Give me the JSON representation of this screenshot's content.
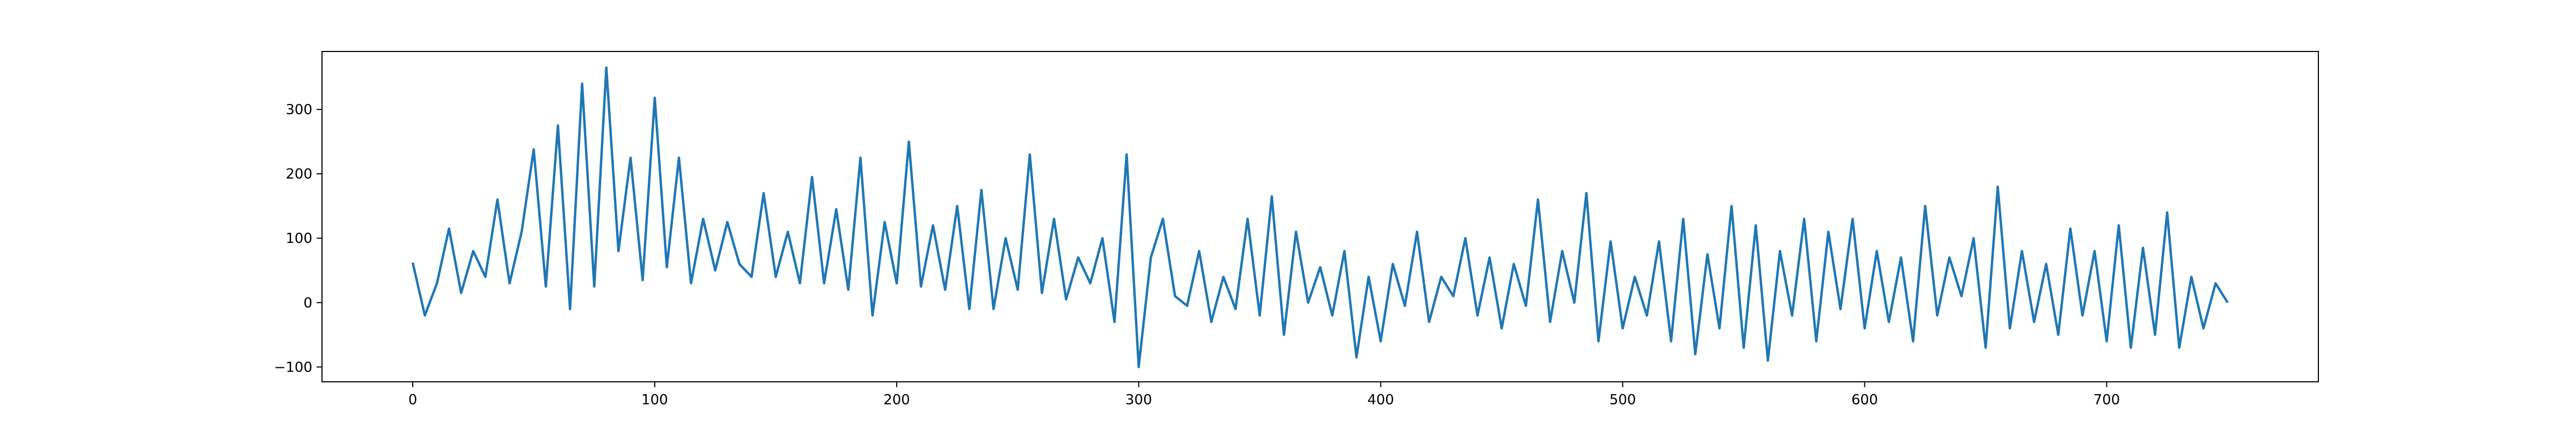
{
  "chart_data": {
    "type": "line",
    "title": "",
    "xlabel": "",
    "ylabel": "",
    "xlim": [
      -37.5,
      787.5
    ],
    "ylim": [
      -123,
      390
    ],
    "xticks": [
      0,
      100,
      200,
      300,
      400,
      500,
      600,
      700
    ],
    "yticks": [
      -100,
      0,
      100,
      200,
      300
    ],
    "grid": false,
    "legend": "none",
    "colors": {
      "line": "#1f77b4",
      "axes": "#000000",
      "background": "#ffffff"
    },
    "series": [
      {
        "x": [
          0,
          5,
          10,
          15,
          20,
          25,
          30,
          35,
          40,
          45,
          50,
          55,
          60,
          65,
          70,
          75,
          80,
          85,
          90,
          95,
          100,
          105,
          110,
          115,
          120,
          125,
          130,
          135,
          140,
          145,
          150,
          155,
          160,
          165,
          170,
          175,
          180,
          185,
          190,
          195,
          200,
          205,
          210,
          215,
          220,
          225,
          230,
          235,
          240,
          245,
          250,
          255,
          260,
          265,
          270,
          275,
          280,
          285,
          290,
          295,
          300,
          305,
          310,
          315,
          320,
          325,
          330,
          335,
          340,
          345,
          350,
          355,
          360,
          365,
          370,
          375,
          380,
          385,
          390,
          395,
          400,
          405,
          410,
          415,
          420,
          425,
          430,
          435,
          440,
          445,
          450,
          455,
          460,
          465,
          470,
          475,
          480,
          485,
          490,
          495,
          500,
          505,
          510,
          515,
          520,
          525,
          530,
          535,
          540,
          545,
          550,
          555,
          560,
          565,
          570,
          575,
          580,
          585,
          590,
          595,
          600,
          605,
          610,
          615,
          620,
          625,
          630,
          635,
          640,
          645,
          650,
          655,
          660,
          665,
          670,
          675,
          680,
          685,
          690,
          695,
          700,
          705,
          710,
          715,
          720,
          725,
          730,
          735,
          740,
          745,
          750
        ],
        "y": [
          62,
          -20,
          30,
          115,
          15,
          80,
          40,
          160,
          30,
          110,
          238,
          25,
          275,
          -10,
          340,
          25,
          365,
          80,
          225,
          35,
          318,
          55,
          225,
          30,
          130,
          50,
          125,
          60,
          40,
          170,
          40,
          110,
          30,
          195,
          30,
          145,
          20,
          225,
          -20,
          125,
          30,
          250,
          25,
          120,
          20,
          150,
          -10,
          175,
          -10,
          100,
          20,
          230,
          15,
          130,
          5,
          70,
          30,
          100,
          -30,
          230,
          -100,
          70,
          130,
          10,
          -5,
          80,
          -30,
          40,
          -10,
          130,
          -20,
          165,
          -50,
          110,
          0,
          55,
          -20,
          80,
          -85,
          40,
          -60,
          60,
          -5,
          110,
          -30,
          40,
          10,
          100,
          -20,
          70,
          -40,
          60,
          -5,
          160,
          -30,
          80,
          0,
          170,
          -60,
          95,
          -40,
          40,
          -20,
          95,
          -60,
          130,
          -80,
          75,
          -40,
          150,
          -70,
          120,
          -90,
          80,
          -20,
          130,
          -60,
          110,
          -10,
          130,
          -40,
          80,
          -30,
          70,
          -60,
          150,
          -20,
          70,
          10,
          100,
          -70,
          180,
          -40,
          80,
          -30,
          60,
          -50,
          115,
          -20,
          80,
          -60,
          120,
          -70,
          85,
          -50,
          140,
          -70,
          40,
          -40,
          30,
          0
        ]
      }
    ]
  }
}
